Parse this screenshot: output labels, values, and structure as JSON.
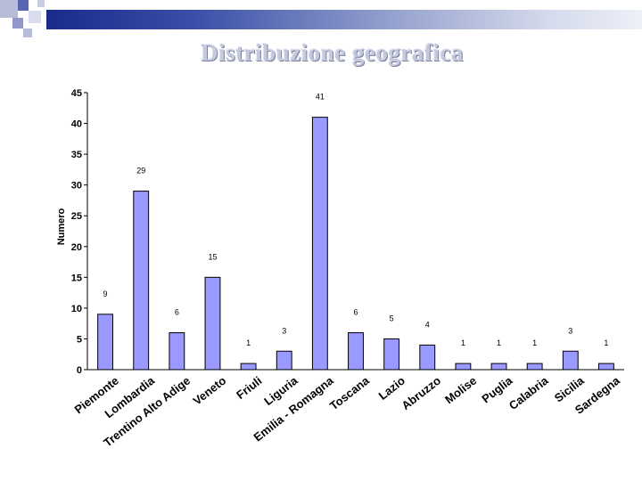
{
  "slide": {
    "title": "Distribuzione geografica",
    "accent_bar_color": "#1a2a8a"
  },
  "chart_data": {
    "type": "bar",
    "title": "",
    "xlabel": "",
    "ylabel": "Numero",
    "ylim": [
      0,
      45
    ],
    "yticks": [
      0,
      5,
      10,
      15,
      20,
      25,
      30,
      35,
      40,
      45
    ],
    "grid": false,
    "bar_color": "#9999ff",
    "categories": [
      "Piemonte",
      "Lombardia",
      "Trentino Alto Adige",
      "Veneto",
      "Friuli",
      "Liguria",
      "Emilia - Romagna",
      "Toscana",
      "Lazio",
      "Abruzzo",
      "Molise",
      "Puglia",
      "Calabria",
      "Sicilia",
      "Sardegna"
    ],
    "values": [
      9,
      29,
      6,
      15,
      1,
      3,
      41,
      6,
      5,
      4,
      1,
      1,
      1,
      3,
      1
    ]
  }
}
